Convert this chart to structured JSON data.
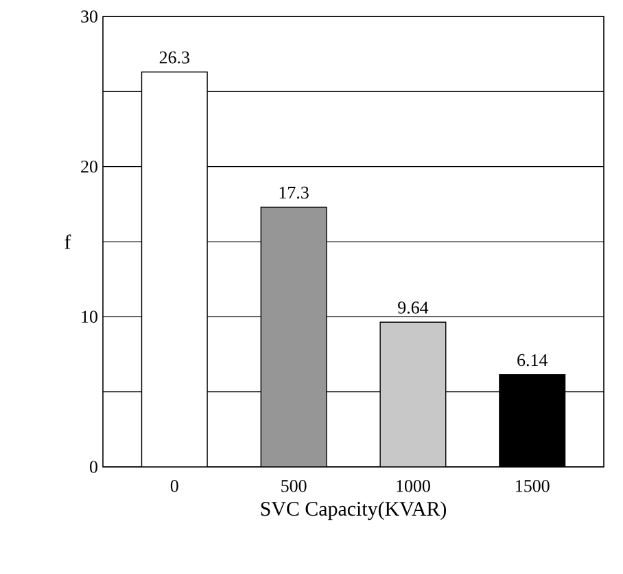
{
  "chart_data": {
    "type": "bar",
    "xlabel": "SVC Capacity(KVAR)",
    "ylabel": "f",
    "categories": [
      "0",
      "500",
      "1000",
      "1500"
    ],
    "values": [
      26.3,
      17.3,
      9.64,
      6.14
    ],
    "colors": [
      "#ffffff",
      "#969696",
      "#c8c8c8",
      "#000000"
    ],
    "ylim": [
      0,
      30
    ],
    "yticks": [
      0,
      {
        "value": 5,
        "label": null
      },
      10,
      {
        "value": 15,
        "label": null
      },
      20,
      {
        "value": 25,
        "label": null
      },
      30
    ],
    "grid": "y",
    "data_labels": true
  }
}
